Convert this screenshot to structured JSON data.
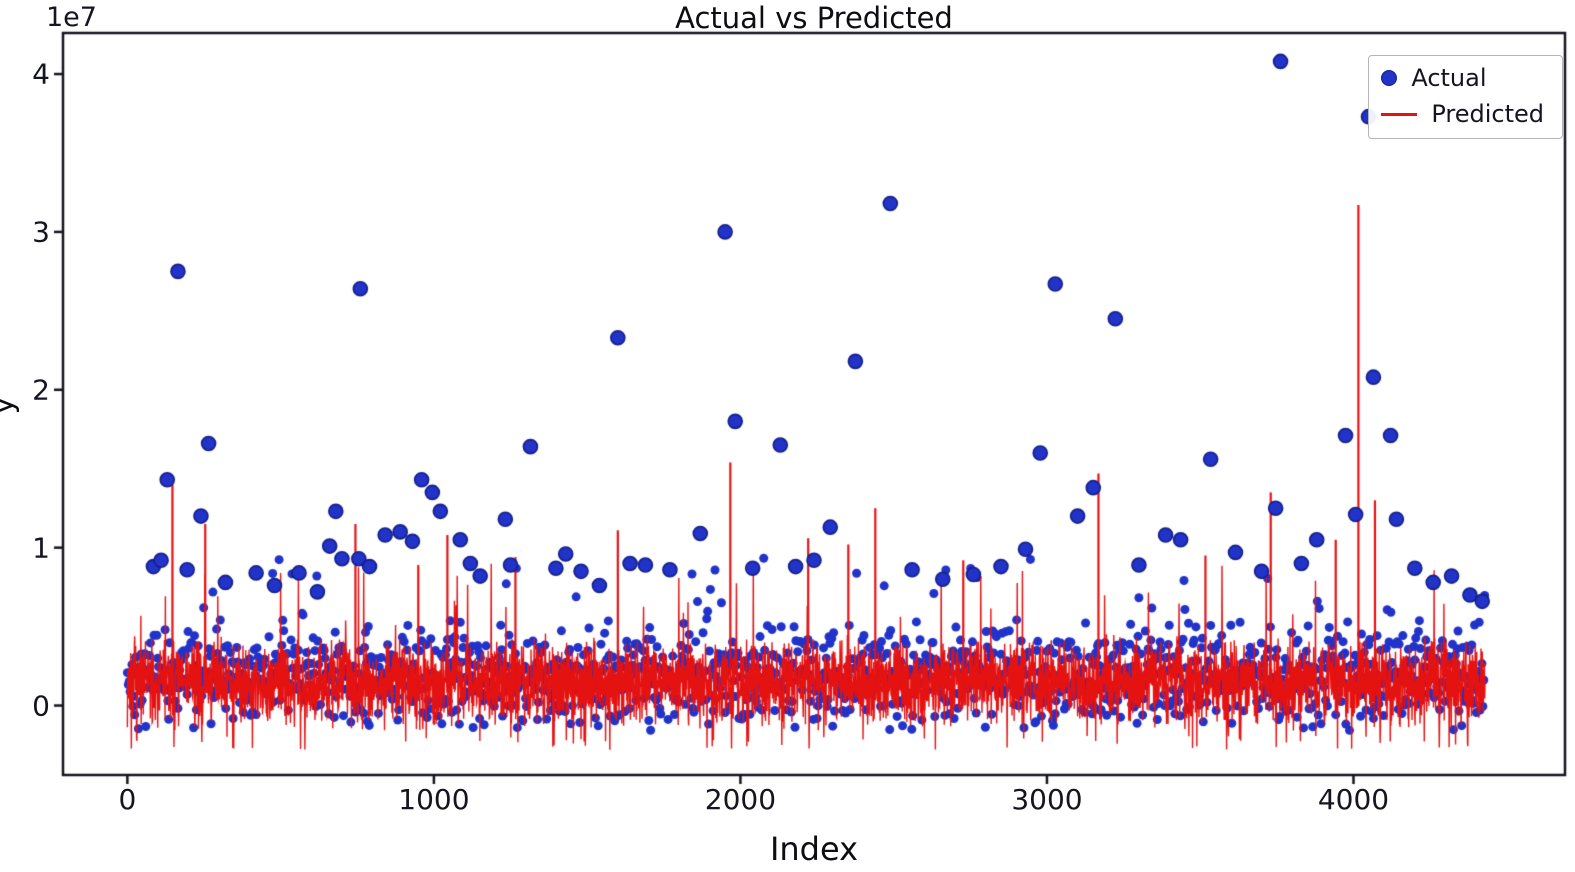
{
  "chart_data": {
    "type": "line+scatter",
    "title": "Actual vs Predicted",
    "xlabel": "Index",
    "ylabel": "y",
    "y_offset_label": "1e7",
    "xlim": [
      -210,
      4690
    ],
    "ylim": [
      -4400000,
      42600000
    ],
    "x_ticks": [
      0,
      1000,
      2000,
      3000,
      4000
    ],
    "y_ticks": [
      0,
      10000000,
      20000000,
      30000000,
      40000000
    ],
    "y_tick_labels": [
      "0",
      "1",
      "2",
      "3",
      "4"
    ],
    "grid": false,
    "frame_color": "#15151f",
    "legend": {
      "position": "upper right",
      "items": [
        {
          "label": "Actual",
          "type": "scatter",
          "color": "#2133c9"
        },
        {
          "label": "Predicted",
          "type": "line",
          "color": "#e51212"
        }
      ]
    },
    "series": [
      {
        "name": "Actual",
        "type": "scatter",
        "color": "#2133c9",
        "edge_color": "#141f86",
        "marker_size_px": 7,
        "baseline": {
          "x_start": 0,
          "x_end": 4430,
          "step": 3,
          "band_low": -1800000,
          "band_high": 5600000,
          "mid_outlier_rate": 0.025,
          "mid_low": 5600000,
          "mid_high": 9600000,
          "dot_radius_px": 4.5
        },
        "outliers": [
          [
            85,
            8800000
          ],
          [
            110,
            9200000
          ],
          [
            130,
            14300000
          ],
          [
            165,
            27500000
          ],
          [
            195,
            8600000
          ],
          [
            240,
            12000000
          ],
          [
            265,
            16600000
          ],
          [
            320,
            7800000
          ],
          [
            420,
            8400000
          ],
          [
            480,
            7600000
          ],
          [
            560,
            8400000
          ],
          [
            620,
            7200000
          ],
          [
            660,
            10100000
          ],
          [
            680,
            12300000
          ],
          [
            700,
            9300000
          ],
          [
            755,
            9300000
          ],
          [
            760,
            26400000
          ],
          [
            790,
            8800000
          ],
          [
            841,
            10800000
          ],
          [
            890,
            11000000
          ],
          [
            930,
            10400000
          ],
          [
            960,
            14300000
          ],
          [
            995,
            13500000
          ],
          [
            1021,
            12300000
          ],
          [
            1086,
            10500000
          ],
          [
            1119,
            9000000
          ],
          [
            1151,
            8200000
          ],
          [
            1233,
            11800000
          ],
          [
            1250,
            8900000
          ],
          [
            1315,
            16400000
          ],
          [
            1398,
            8700000
          ],
          [
            1430,
            9600000
          ],
          [
            1480,
            8500000
          ],
          [
            1540,
            7600000
          ],
          [
            1600,
            23300000
          ],
          [
            1640,
            9000000
          ],
          [
            1690,
            8900000
          ],
          [
            1770,
            8600000
          ],
          [
            1869,
            10900000
          ],
          [
            1950,
            30000000
          ],
          [
            1983,
            18000000
          ],
          [
            2040,
            8700000
          ],
          [
            2130,
            16500000
          ],
          [
            2180,
            8800000
          ],
          [
            2240,
            9200000
          ],
          [
            2293,
            11300000
          ],
          [
            2375,
            21800000
          ],
          [
            2489,
            31800000
          ],
          [
            2560,
            8600000
          ],
          [
            2660,
            8000000
          ],
          [
            2760,
            8300000
          ],
          [
            2850,
            8800000
          ],
          [
            2930,
            9900000
          ],
          [
            2978,
            16000000
          ],
          [
            3027,
            26700000
          ],
          [
            3100,
            12000000
          ],
          [
            3151,
            13800000
          ],
          [
            3223,
            24500000
          ],
          [
            3300,
            8900000
          ],
          [
            3387,
            10800000
          ],
          [
            3436,
            10500000
          ],
          [
            3534,
            15600000
          ],
          [
            3615,
            9700000
          ],
          [
            3700,
            8500000
          ],
          [
            3746,
            12500000
          ],
          [
            3762,
            40800000
          ],
          [
            3830,
            9000000
          ],
          [
            3880,
            10500000
          ],
          [
            3974,
            17100000
          ],
          [
            4007,
            12100000
          ],
          [
            4049,
            37300000
          ],
          [
            4065,
            20800000
          ],
          [
            4121,
            17100000
          ],
          [
            4140,
            11800000
          ],
          [
            4200,
            8700000
          ],
          [
            4260,
            7800000
          ],
          [
            4320,
            8200000
          ],
          [
            4380,
            7000000
          ],
          [
            4420,
            6600000
          ]
        ]
      },
      {
        "name": "Predicted",
        "type": "line",
        "color": "#e51212",
        "line_width": 1.4,
        "baseline": {
          "x_start": 0,
          "x_end": 4430,
          "step": 1,
          "band_low": -1600000,
          "band_high": 4600000,
          "up_spike_rate": 0.01,
          "up_low": 5000000,
          "up_high": 9000000,
          "down_spike_rate": 0.015,
          "down_low": -2800000,
          "down_high": -1900000
        },
        "spikes": [
          [
            147,
            14000000
          ],
          [
            254,
            11500000
          ],
          [
            744,
            11500000
          ],
          [
            949,
            8900000
          ],
          [
            1044,
            10800000
          ],
          [
            1266,
            9400000
          ],
          [
            1600,
            11100000
          ],
          [
            1967,
            15400000
          ],
          [
            2221,
            10600000
          ],
          [
            2352,
            10200000
          ],
          [
            2440,
            12500000
          ],
          [
            2727,
            9200000
          ],
          [
            3168,
            14700000
          ],
          [
            3517,
            9500000
          ],
          [
            3730,
            13500000
          ],
          [
            3942,
            10500000
          ],
          [
            4016,
            31700000
          ],
          [
            4070,
            13000000
          ]
        ]
      }
    ]
  }
}
